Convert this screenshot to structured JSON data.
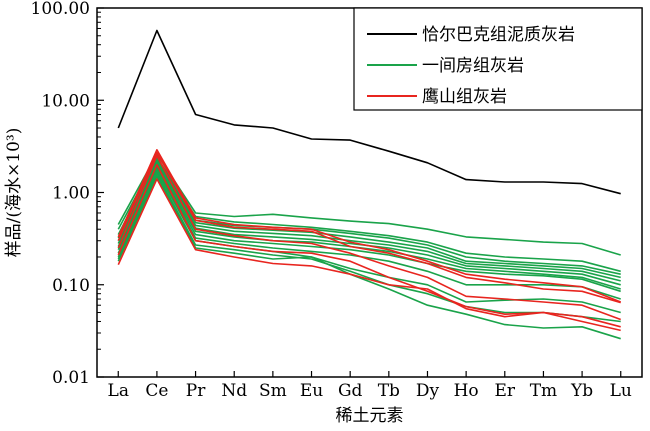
{
  "chart_data": {
    "type": "line",
    "xlabel": "稀土元素",
    "ylabel": "样品/(海水×10³)",
    "y_scale": "log",
    "ylim": [
      0.01,
      100
    ],
    "y_ticks": [
      "0.01",
      "0.10",
      "1.00",
      "10.00",
      "100.00"
    ],
    "categories": [
      "La",
      "Ce",
      "Pr",
      "Nd",
      "Sm",
      "Eu",
      "Gd",
      "Tb",
      "Dy",
      "Ho",
      "Er",
      "Tm",
      "Yb",
      "Lu"
    ],
    "legend_position": "top-right",
    "legend": [
      {
        "label": "恰尔巴克组泥质灰岩",
        "color": "#000000"
      },
      {
        "label": "一间房组灰岩",
        "color": "#1aa34a"
      },
      {
        "label": "鹰山组灰岩",
        "color": "#e8251f"
      }
    ],
    "series": [
      {
        "group": 0,
        "color": "#000000",
        "values": [
          5.0,
          57,
          7.0,
          5.4,
          5.0,
          3.8,
          3.7,
          2.8,
          2.1,
          1.38,
          1.3,
          1.3,
          1.25,
          0.97
        ]
      },
      {
        "group": 1,
        "color": "#1aa34a",
        "values": [
          0.45,
          2.6,
          0.6,
          0.55,
          0.58,
          0.53,
          0.49,
          0.46,
          0.4,
          0.33,
          0.31,
          0.29,
          0.28,
          0.21
        ]
      },
      {
        "group": 1,
        "color": "#1aa34a",
        "values": [
          0.4,
          2.4,
          0.55,
          0.48,
          0.45,
          0.42,
          0.38,
          0.34,
          0.29,
          0.22,
          0.2,
          0.19,
          0.18,
          0.14
        ]
      },
      {
        "group": 1,
        "color": "#1aa34a",
        "values": [
          0.35,
          2.3,
          0.5,
          0.44,
          0.42,
          0.4,
          0.36,
          0.32,
          0.27,
          0.2,
          0.18,
          0.17,
          0.16,
          0.13
        ]
      },
      {
        "group": 1,
        "color": "#1aa34a",
        "values": [
          0.32,
          2.2,
          0.47,
          0.41,
          0.39,
          0.37,
          0.33,
          0.29,
          0.25,
          0.18,
          0.17,
          0.16,
          0.15,
          0.12
        ]
      },
      {
        "group": 1,
        "color": "#1aa34a",
        "values": [
          0.3,
          2.1,
          0.44,
          0.38,
          0.36,
          0.34,
          0.3,
          0.27,
          0.23,
          0.17,
          0.16,
          0.15,
          0.14,
          0.11
        ]
      },
      {
        "group": 1,
        "color": "#1aa34a",
        "values": [
          0.28,
          2.0,
          0.41,
          0.35,
          0.33,
          0.31,
          0.28,
          0.25,
          0.21,
          0.16,
          0.15,
          0.14,
          0.13,
          0.1
        ]
      },
      {
        "group": 1,
        "color": "#1aa34a",
        "values": [
          0.26,
          1.9,
          0.38,
          0.33,
          0.3,
          0.29,
          0.26,
          0.23,
          0.19,
          0.15,
          0.14,
          0.13,
          0.12,
          0.09
        ]
      },
      {
        "group": 1,
        "color": "#1aa34a",
        "values": [
          0.24,
          1.85,
          0.35,
          0.3,
          0.28,
          0.26,
          0.24,
          0.21,
          0.17,
          0.14,
          0.13,
          0.125,
          0.115,
          0.085
        ]
      },
      {
        "group": 1,
        "color": "#1aa34a",
        "values": [
          0.22,
          1.8,
          0.32,
          0.28,
          0.25,
          0.23,
          0.21,
          0.18,
          0.14,
          0.1,
          0.1,
          0.1,
          0.095,
          0.07
        ]
      },
      {
        "group": 1,
        "color": "#1aa34a",
        "values": [
          0.2,
          1.7,
          0.3,
          0.26,
          0.23,
          0.2,
          0.15,
          0.12,
          0.1,
          0.065,
          0.068,
          0.07,
          0.065,
          0.05
        ]
      },
      {
        "group": 1,
        "color": "#1aa34a",
        "values": [
          0.19,
          1.6,
          0.27,
          0.24,
          0.21,
          0.19,
          0.14,
          0.1,
          0.08,
          0.058,
          0.05,
          0.05,
          0.045,
          0.04
        ]
      },
      {
        "group": 1,
        "color": "#1aa34a",
        "values": [
          0.18,
          1.5,
          0.25,
          0.22,
          0.19,
          0.2,
          0.13,
          0.09,
          0.06,
          0.048,
          0.037,
          0.034,
          0.035,
          0.026
        ]
      },
      {
        "group": 2,
        "color": "#e8251f",
        "values": [
          0.33,
          2.9,
          0.53,
          0.45,
          0.42,
          0.4,
          0.29,
          0.24,
          0.18,
          0.13,
          0.115,
          0.105,
          0.095,
          0.065
        ]
      },
      {
        "group": 2,
        "color": "#e8251f",
        "values": [
          0.3,
          2.7,
          0.5,
          0.42,
          0.4,
          0.38,
          0.26,
          0.22,
          0.17,
          0.12,
          0.105,
          0.09,
          0.085,
          0.064
        ]
      },
      {
        "group": 2,
        "color": "#e8251f",
        "values": [
          0.25,
          2.5,
          0.4,
          0.34,
          0.3,
          0.28,
          0.22,
          0.16,
          0.12,
          0.075,
          0.07,
          0.065,
          0.06,
          0.042
        ]
      },
      {
        "group": 2,
        "color": "#e8251f",
        "values": [
          0.21,
          2.0,
          0.3,
          0.26,
          0.23,
          0.22,
          0.18,
          0.12,
          0.085,
          0.058,
          0.048,
          0.05,
          0.045,
          0.035
        ]
      },
      {
        "group": 2,
        "color": "#e8251f",
        "values": [
          0.165,
          1.4,
          0.24,
          0.2,
          0.17,
          0.16,
          0.13,
          0.1,
          0.09,
          0.055,
          0.045,
          0.05,
          0.04,
          0.032
        ]
      }
    ]
  }
}
